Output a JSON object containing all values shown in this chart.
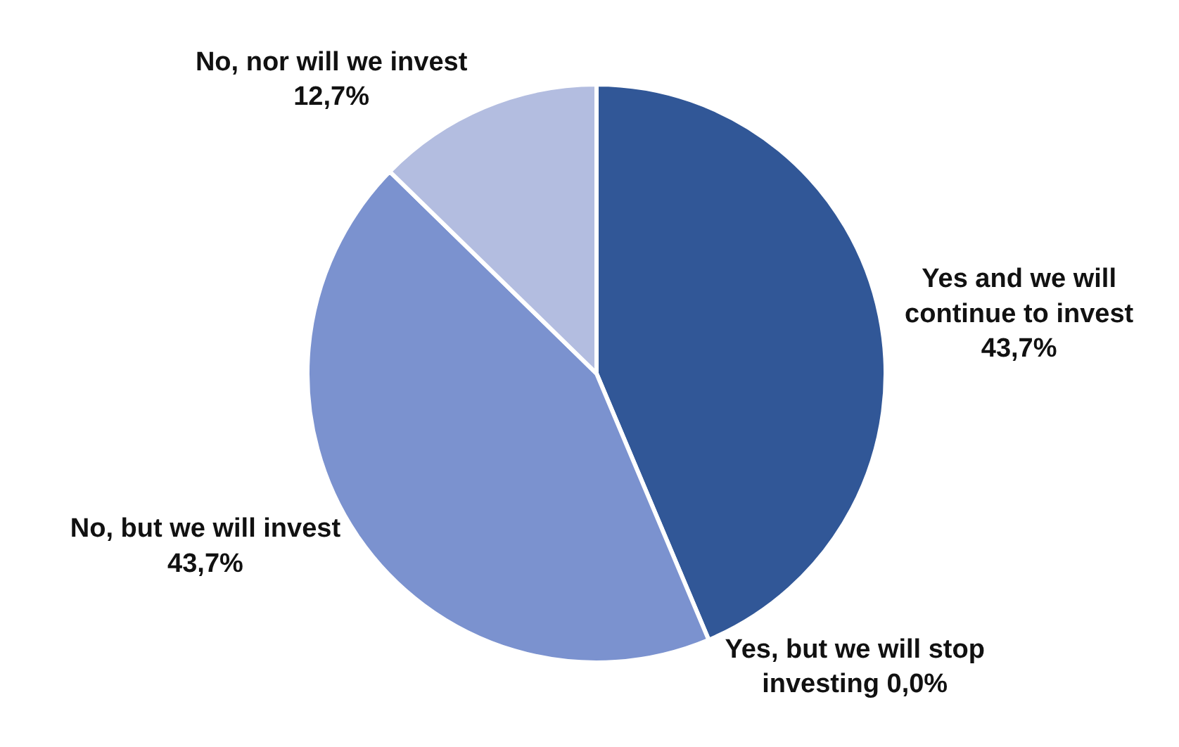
{
  "chart_data": {
    "type": "pie",
    "categories": [
      "Yes and we will continue to invest",
      "Yes, but we will stop investing",
      "No, but we will invest",
      "No, nor will we invest"
    ],
    "values": [
      43.7,
      0.0,
      43.7,
      12.7
    ],
    "value_labels": [
      "43,7%",
      "0,0%",
      "43,7%",
      "12,7%"
    ],
    "colors": [
      "#315797",
      "#4a6fb5",
      "#7b92cf",
      "#b3bde0"
    ],
    "legend": false
  }
}
